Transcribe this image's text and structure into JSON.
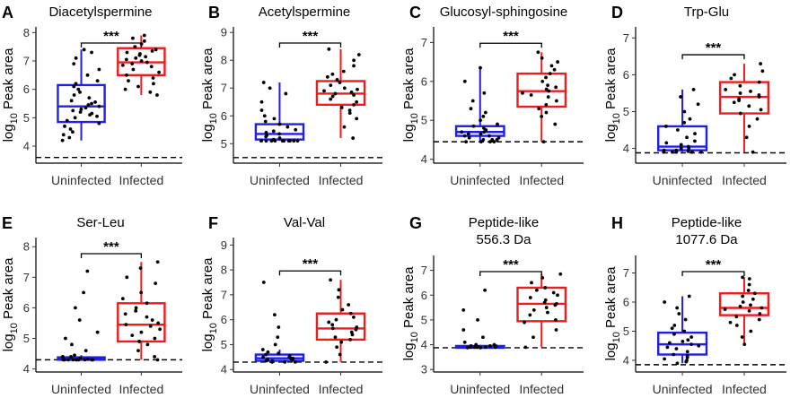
{
  "colors": {
    "uninfected": "#1f1fe6",
    "infected": "#ee1c1c",
    "points": "#000000",
    "axis": "#000000"
  },
  "categories": [
    "Uninfected",
    "Infected"
  ],
  "chart_data": [
    {
      "panel": "A",
      "title_lines": [
        "Diacetylspermine"
      ],
      "type": "box",
      "ylabel_prefix": "log",
      "ylabel_sub": "10",
      "ylabel_suffix": " Peak area",
      "ylim": [
        3.4,
        8.2
      ],
      "yticks": [
        4,
        5,
        6,
        7,
        8
      ],
      "baseline": 3.6,
      "significance": "***",
      "groups": [
        {
          "name": "Uninfected",
          "q1": 4.85,
          "median": 5.4,
          "q3": 6.15,
          "whisker_low": 4.2,
          "whisker_high": 7.4,
          "points": [
            4.2,
            4.3,
            4.4,
            4.5,
            4.6,
            4.7,
            4.8,
            4.9,
            5.0,
            5.05,
            5.1,
            5.15,
            5.2,
            5.25,
            5.3,
            5.35,
            5.4,
            5.45,
            5.5,
            5.55,
            5.6,
            5.7,
            5.8,
            5.9,
            6.0,
            6.1,
            6.2,
            6.3,
            6.5,
            6.7,
            6.9,
            7.1,
            7.3,
            7.4
          ]
        },
        {
          "name": "Infected",
          "q1": 6.5,
          "median": 6.95,
          "q3": 7.45,
          "whisker_low": 5.8,
          "whisker_high": 7.9,
          "points": [
            5.8,
            5.9,
            6.0,
            6.1,
            6.2,
            6.3,
            6.4,
            6.5,
            6.6,
            6.7,
            6.8,
            6.85,
            6.9,
            6.95,
            7.0,
            7.05,
            7.1,
            7.15,
            7.2,
            7.25,
            7.3,
            7.35,
            7.4,
            7.5,
            7.6,
            7.7,
            7.8,
            7.9
          ]
        }
      ]
    },
    {
      "panel": "B",
      "title_lines": [
        "Acetylspermine"
      ],
      "type": "box",
      "ylabel_prefix": "log",
      "ylabel_sub": "10",
      "ylabel_suffix": " Peak area",
      "ylim": [
        4.3,
        9.2
      ],
      "yticks": [
        5,
        6,
        7,
        8,
        9
      ],
      "baseline": 4.5,
      "significance": "***",
      "groups": [
        {
          "name": "Uninfected",
          "q1": 5.15,
          "median": 5.35,
          "q3": 5.7,
          "whisker_low": 5.1,
          "whisker_high": 7.2,
          "points": [
            5.1,
            5.1,
            5.1,
            5.1,
            5.1,
            5.1,
            5.1,
            5.1,
            5.1,
            5.1,
            5.15,
            5.2,
            5.25,
            5.3,
            5.35,
            5.4,
            5.45,
            5.5,
            5.6,
            5.7,
            5.8,
            5.9,
            6.0,
            6.2,
            6.5,
            6.8,
            7.0,
            7.2
          ]
        },
        {
          "name": "Infected",
          "q1": 6.4,
          "median": 6.8,
          "q3": 7.25,
          "whisker_low": 5.2,
          "whisker_high": 8.4,
          "points": [
            5.2,
            5.6,
            5.9,
            6.1,
            6.2,
            6.3,
            6.4,
            6.5,
            6.6,
            6.7,
            6.75,
            6.8,
            6.85,
            6.9,
            6.95,
            7.0,
            7.1,
            7.2,
            7.3,
            7.4,
            7.5,
            7.6,
            7.8,
            8.0,
            8.2,
            8.4
          ]
        }
      ]
    },
    {
      "panel": "C",
      "title_lines": [
        "Glucosyl-sphingosine"
      ],
      "type": "box",
      "ylabel_prefix": "log",
      "ylabel_sub": "10",
      "ylabel_suffix": " Peak area",
      "ylim": [
        3.9,
        7.4
      ],
      "yticks": [
        4,
        5,
        6,
        7
      ],
      "baseline": 4.45,
      "significance": "***",
      "groups": [
        {
          "name": "Uninfected",
          "q1": 4.6,
          "median": 4.7,
          "q3": 4.85,
          "whisker_low": 4.45,
          "whisker_high": 6.35,
          "points": [
            4.45,
            4.45,
            4.45,
            4.45,
            4.5,
            4.5,
            4.5,
            4.55,
            4.55,
            4.6,
            4.6,
            4.65,
            4.65,
            4.7,
            4.7,
            4.75,
            4.8,
            4.85,
            4.9,
            5.0,
            5.1,
            5.2,
            5.3,
            5.5,
            5.7,
            6.0,
            6.35
          ]
        },
        {
          "name": "Infected",
          "q1": 5.35,
          "median": 5.75,
          "q3": 6.2,
          "whisker_low": 4.45,
          "whisker_high": 6.75,
          "points": [
            4.45,
            4.9,
            5.1,
            5.2,
            5.3,
            5.4,
            5.5,
            5.6,
            5.65,
            5.7,
            5.75,
            5.8,
            5.85,
            5.9,
            6.0,
            6.1,
            6.2,
            6.3,
            6.4,
            6.5,
            6.6,
            6.75
          ]
        }
      ]
    },
    {
      "panel": "D",
      "title_lines": [
        "Trp-Glu"
      ],
      "type": "box",
      "ylabel_prefix": "log",
      "ylabel_sub": "10",
      "ylabel_suffix": " Peak area",
      "ylim": [
        3.6,
        7.3
      ],
      "yticks": [
        4,
        5,
        6,
        7
      ],
      "baseline": 3.88,
      "significance": "***",
      "groups": [
        {
          "name": "Uninfected",
          "q1": 3.95,
          "median": 4.05,
          "q3": 4.6,
          "whisker_low": 3.9,
          "whisker_high": 5.6,
          "points": [
            3.9,
            3.9,
            3.9,
            3.9,
            3.9,
            3.92,
            3.95,
            3.95,
            4.0,
            4.0,
            4.05,
            4.1,
            4.15,
            4.2,
            4.3,
            4.4,
            4.5,
            4.6,
            4.7,
            4.8,
            5.0,
            5.2,
            5.4,
            5.6
          ]
        },
        {
          "name": "Infected",
          "q1": 4.95,
          "median": 5.4,
          "q3": 5.8,
          "whisker_low": 3.9,
          "whisker_high": 6.3,
          "points": [
            3.9,
            4.3,
            4.6,
            4.8,
            4.95,
            5.05,
            5.15,
            5.25,
            5.3,
            5.35,
            5.4,
            5.45,
            5.5,
            5.55,
            5.6,
            5.7,
            5.8,
            5.9,
            6.0,
            6.1,
            6.3
          ]
        }
      ]
    },
    {
      "panel": "E",
      "title_lines": [
        "Ser-Leu"
      ],
      "type": "box",
      "ylabel_prefix": "log",
      "ylabel_sub": "10",
      "ylabel_suffix": " Peak area",
      "ylim": [
        3.9,
        8.3
      ],
      "yticks": [
        4,
        5,
        6,
        7,
        8
      ],
      "baseline": 4.3,
      "significance": "***",
      "groups": [
        {
          "name": "Uninfected",
          "q1": 4.3,
          "median": 4.32,
          "q3": 4.38,
          "whisker_low": 4.3,
          "whisker_high": 4.45,
          "points": [
            4.3,
            4.3,
            4.3,
            4.3,
            4.3,
            4.3,
            4.3,
            4.3,
            4.3,
            4.3,
            4.32,
            4.35,
            4.35,
            4.4,
            4.4,
            4.45,
            4.6,
            4.8,
            5.0,
            5.2,
            5.6,
            6.0,
            6.5,
            7.2
          ]
        },
        {
          "name": "Infected",
          "q1": 4.9,
          "median": 5.45,
          "q3": 6.15,
          "whisker_low": 4.3,
          "whisker_high": 7.5,
          "points": [
            4.3,
            4.4,
            4.6,
            4.8,
            4.9,
            5.0,
            5.1,
            5.2,
            5.3,
            5.4,
            5.45,
            5.5,
            5.6,
            5.7,
            5.8,
            5.9,
            6.0,
            6.15,
            6.3,
            6.5,
            6.8,
            7.0,
            7.3,
            7.5
          ]
        }
      ]
    },
    {
      "panel": "F",
      "title_lines": [
        "Val-Val"
      ],
      "type": "box",
      "ylabel_prefix": "log",
      "ylabel_sub": "10",
      "ylabel_suffix": " Peak area",
      "ylim": [
        3.9,
        9.3
      ],
      "yticks": [
        4,
        5,
        6,
        7,
        8,
        9
      ],
      "baseline": 4.3,
      "significance": "***",
      "groups": [
        {
          "name": "Uninfected",
          "q1": 4.35,
          "median": 4.45,
          "q3": 4.6,
          "whisker_low": 4.3,
          "whisker_high": 4.8,
          "points": [
            4.3,
            4.3,
            4.3,
            4.35,
            4.35,
            4.4,
            4.4,
            4.45,
            4.45,
            4.5,
            4.5,
            4.55,
            4.6,
            4.65,
            4.7,
            4.8,
            5.0,
            5.3,
            5.7,
            6.2,
            7.5
          ]
        },
        {
          "name": "Infected",
          "q1": 5.2,
          "median": 5.65,
          "q3": 6.25,
          "whisker_low": 4.3,
          "whisker_high": 7.6,
          "points": [
            4.3,
            4.6,
            4.9,
            5.1,
            5.2,
            5.3,
            5.4,
            5.5,
            5.6,
            5.65,
            5.7,
            5.8,
            5.9,
            6.0,
            6.1,
            6.25,
            6.4,
            6.6,
            6.9,
            7.2,
            7.6
          ]
        }
      ]
    },
    {
      "panel": "G",
      "title_lines": [
        "Peptide-like",
        "556.3 Da"
      ],
      "type": "box",
      "ylabel_prefix": "log",
      "ylabel_sub": "10",
      "ylabel_suffix": " Peak area",
      "ylim": [
        2.9,
        7.6
      ],
      "yticks": [
        3,
        4,
        5,
        6,
        7
      ],
      "baseline": 3.88,
      "significance": "***",
      "groups": [
        {
          "name": "Uninfected",
          "q1": 3.9,
          "median": 3.92,
          "q3": 3.95,
          "whisker_low": 3.88,
          "whisker_high": 4.0,
          "points": [
            3.88,
            3.88,
            3.9,
            3.9,
            3.9,
            3.9,
            3.9,
            3.92,
            3.92,
            3.95,
            3.95,
            3.95,
            4.0,
            4.0,
            4.1,
            4.3,
            4.6,
            5.0,
            5.4,
            6.2
          ]
        },
        {
          "name": "Infected",
          "q1": 4.95,
          "median": 5.65,
          "q3": 6.3,
          "whisker_low": 3.9,
          "whisker_high": 6.85,
          "points": [
            3.9,
            4.3,
            4.6,
            4.9,
            5.0,
            5.2,
            5.3,
            5.4,
            5.5,
            5.6,
            5.65,
            5.7,
            5.8,
            5.9,
            6.0,
            6.1,
            6.2,
            6.3,
            6.5,
            6.7,
            6.85
          ]
        }
      ]
    },
    {
      "panel": "H",
      "title_lines": [
        "Peptide-like",
        "1077.6 Da"
      ],
      "type": "box",
      "ylabel_prefix": "log",
      "ylabel_sub": "10",
      "ylabel_suffix": " Peak area",
      "ylim": [
        3.6,
        7.6
      ],
      "yticks": [
        4,
        5,
        6,
        7
      ],
      "baseline": 3.85,
      "significance": "***",
      "groups": [
        {
          "name": "Uninfected",
          "q1": 4.2,
          "median": 4.55,
          "q3": 4.95,
          "whisker_low": 3.9,
          "whisker_high": 6.2,
          "points": [
            3.9,
            3.95,
            4.0,
            4.05,
            4.1,
            4.15,
            4.2,
            4.3,
            4.4,
            4.45,
            4.5,
            4.55,
            4.6,
            4.65,
            4.7,
            4.8,
            4.9,
            5.0,
            5.1,
            5.2,
            5.4,
            5.6,
            5.8,
            6.0,
            6.2
          ]
        },
        {
          "name": "Infected",
          "q1": 5.55,
          "median": 5.8,
          "q3": 6.3,
          "whisker_low": 4.55,
          "whisker_high": 6.85,
          "points": [
            4.55,
            4.8,
            5.0,
            5.2,
            5.3,
            5.4,
            5.5,
            5.6,
            5.7,
            5.75,
            5.8,
            5.85,
            5.9,
            6.0,
            6.1,
            6.2,
            6.3,
            6.4,
            6.6,
            6.8,
            6.85
          ]
        }
      ]
    }
  ]
}
